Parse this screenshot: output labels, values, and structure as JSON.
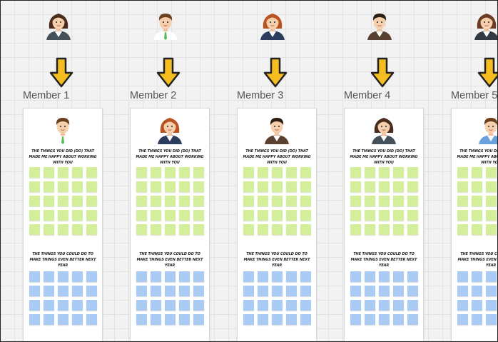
{
  "colors": {
    "arrow": "#f5bd1f",
    "arrow_outline": "#222222",
    "sticky_green": "#d4ef9c",
    "sticky_blue": "#a9cbf4",
    "card": "#ffffff",
    "canvas": "#f2f2f2"
  },
  "top_avatars": [
    {
      "icon": "woman-dark-hair-avatar-icon"
    },
    {
      "icon": "man-green-tie-avatar-icon"
    },
    {
      "icon": "woman-auburn-hair-avatar-icon"
    },
    {
      "icon": "man-brown-jacket-avatar-icon"
    },
    {
      "icon": "woman-brown-hair-avatar-icon"
    }
  ],
  "members": [
    {
      "label": "Member 1",
      "avatar": "man-green-tie-avatar-icon"
    },
    {
      "label": "Member 2",
      "avatar": "woman-auburn-hair-avatar-icon"
    },
    {
      "label": "Member 3",
      "avatar": "man-brown-jacket-avatar-icon"
    },
    {
      "label": "Member 4",
      "avatar": "woman-dark-hair-avatar-icon"
    },
    {
      "label": "Member 5",
      "avatar": "man-blue-shirt-avatar-icon"
    }
  ],
  "card": {
    "heading_positive": "The things you did (do) that made me happy about working with you",
    "heading_improve": "The things you could do to make things even better next year",
    "green_notes": 25,
    "blue_notes": 20
  }
}
